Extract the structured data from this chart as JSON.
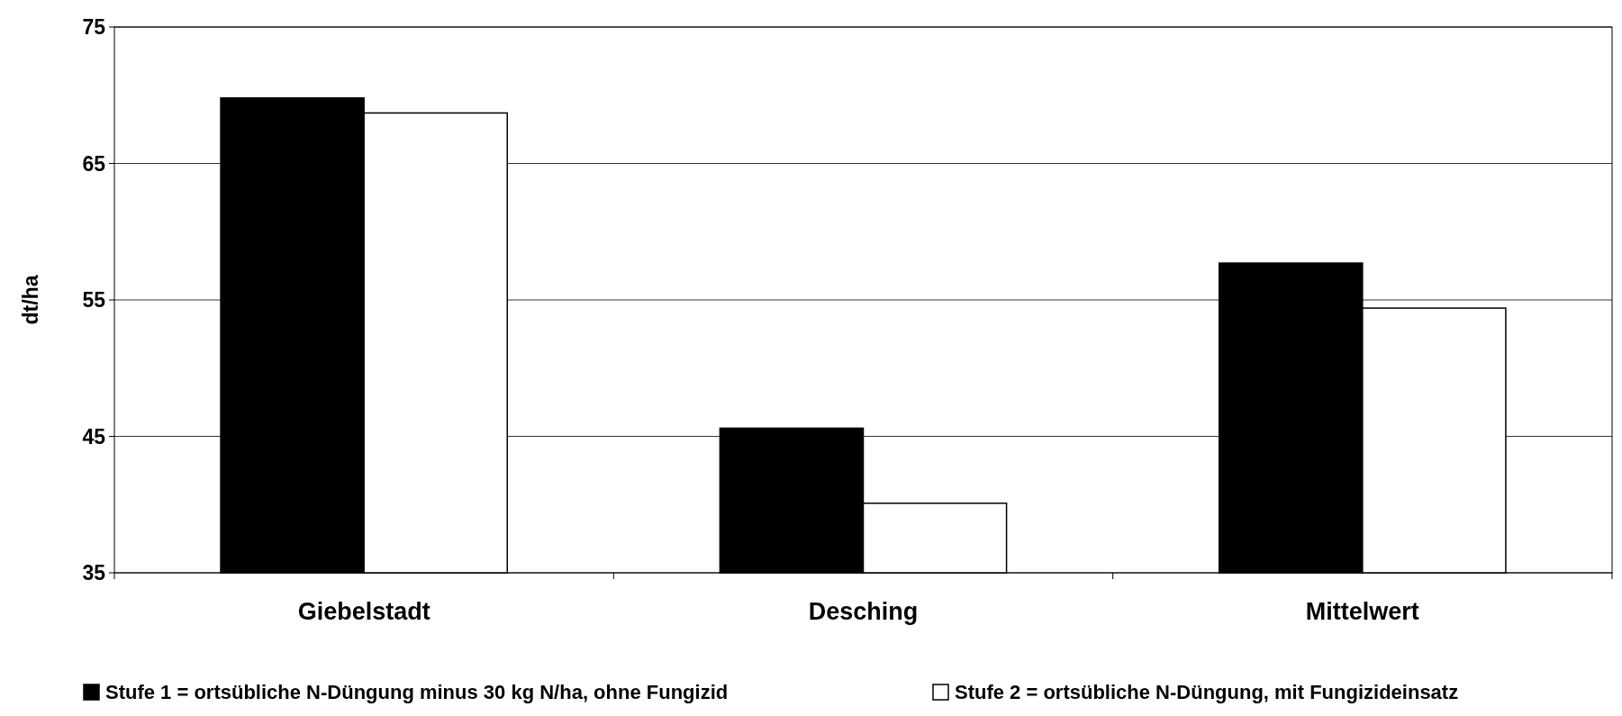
{
  "chart_data": {
    "type": "bar",
    "ylabel": "dt/ha",
    "categories": [
      "Giebelstadt",
      "Desching",
      "Mittelwert"
    ],
    "series": [
      {
        "name": "Stufe 1 = ortsübliche N-Düngung minus 30 kg N/ha, ohne Fungizid",
        "color": "#000000",
        "values": [
          69.8,
          45.6,
          57.7
        ]
      },
      {
        "name": "Stufe 2 = ortsübliche N-Düngung, mit Fungizideinsatz",
        "color": "#ffffff",
        "values": [
          68.7,
          40.1,
          54.4
        ]
      }
    ],
    "ylim": [
      35,
      75
    ],
    "yticks": [
      35,
      45,
      55,
      65,
      75
    ],
    "grid": "y",
    "legend": "bottom"
  }
}
